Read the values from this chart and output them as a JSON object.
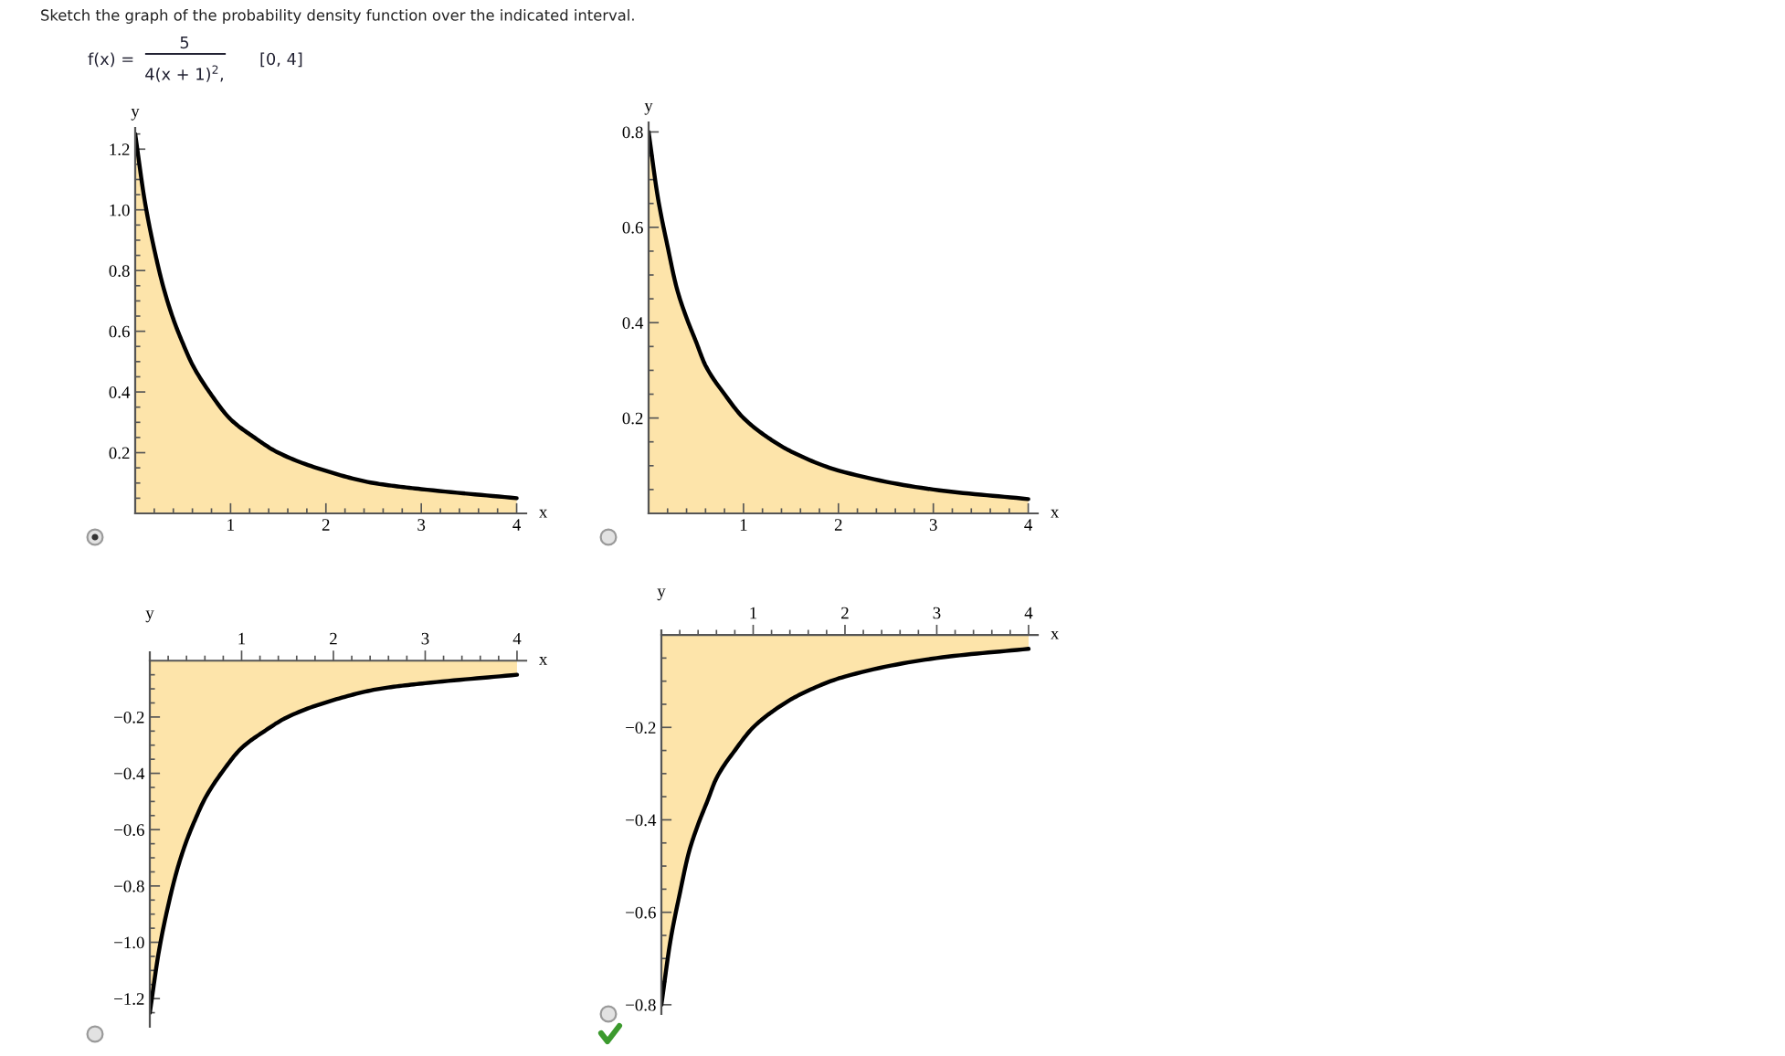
{
  "chart_data": [
    {
      "type": "other",
      "title": "Sketch the graph of the probability density function over the indicated interval.",
      "annotations": [
        "f(x) =",
        "5",
        "4(x + 1)$^{2}$,",
        "[0, 4]"
      ]
    },
    {
      "type": "area",
      "xlabel": "x",
      "ylabel": "y",
      "color": "#fde4aa",
      "x": [
        0,
        0.1,
        0.2,
        0.3,
        0.4,
        0.5,
        0.6,
        0.8,
        1,
        1.25,
        1.5,
        2,
        2.5,
        3,
        4
      ],
      "values": [
        1.25,
        1.03,
        0.87,
        0.74,
        0.64,
        0.56,
        0.49,
        0.39,
        0.31,
        0.25,
        0.2,
        0.14,
        0.1,
        0.08,
        0.05
      ],
      "xlim": [
        0,
        4.1
      ],
      "ylim": [
        0,
        1.27
      ],
      "xticks": [
        {
          "value": 0.2,
          "label": null
        },
        {
          "value": 0.4,
          "label": null
        },
        {
          "value": 0.6,
          "label": null
        },
        {
          "value": 0.8,
          "label": null
        },
        1,
        {
          "value": 1.2,
          "label": null
        },
        {
          "value": 1.4,
          "label": null
        },
        {
          "value": 1.6,
          "label": null
        },
        {
          "value": 1.8,
          "label": null
        },
        2,
        {
          "value": 2.2,
          "label": null
        },
        {
          "value": 2.4,
          "label": null
        },
        {
          "value": 2.6,
          "label": null
        },
        {
          "value": 2.8,
          "label": null
        },
        3,
        {
          "value": 3.2,
          "label": null
        },
        {
          "value": 3.4,
          "label": null
        },
        {
          "value": 3.6,
          "label": null
        },
        {
          "value": 3.8,
          "label": null
        },
        4
      ],
      "yticks": [
        {
          "value": 0.05,
          "label": null
        },
        {
          "value": 0.1,
          "label": null
        },
        {
          "value": 0.15,
          "label": null
        },
        0.2,
        {
          "value": 0.25,
          "label": null
        },
        {
          "value": 0.3,
          "label": null
        },
        {
          "value": 0.35,
          "label": null
        },
        0.4,
        {
          "value": 0.45,
          "label": null
        },
        {
          "value": 0.5,
          "label": null
        },
        {
          "value": 0.55,
          "label": null
        },
        0.6,
        {
          "value": 0.65,
          "label": null
        },
        {
          "value": 0.7,
          "label": null
        },
        {
          "value": 0.75,
          "label": null
        },
        0.8,
        {
          "value": 0.85,
          "label": null
        },
        {
          "value": 0.9,
          "label": null
        },
        {
          "value": 0.95,
          "label": null
        },
        {
          "value": 1,
          "label": "1.0"
        },
        {
          "value": 1.05,
          "label": null
        },
        {
          "value": 1.1,
          "label": null
        },
        {
          "value": 1.15,
          "label": null
        },
        1.2,
        {
          "value": 1.25,
          "label": null
        }
      ]
    },
    {
      "type": "area",
      "xlabel": "x",
      "ylabel": "y",
      "color": "#fde4aa",
      "x": [
        0,
        0.1,
        0.2,
        0.3,
        0.4,
        0.5,
        0.6,
        0.8,
        1,
        1.25,
        1.5,
        2,
        3,
        4
      ],
      "values": [
        0.8,
        0.66,
        0.56,
        0.47,
        0.41,
        0.36,
        0.31,
        0.25,
        0.2,
        0.16,
        0.13,
        0.09,
        0.05,
        0.03
      ],
      "xlim": [
        0,
        4.1
      ],
      "ylim": [
        0,
        0.82
      ],
      "xticks": [
        {
          "value": 0.2,
          "label": null
        },
        {
          "value": 0.4,
          "label": null
        },
        {
          "value": 0.6,
          "label": null
        },
        {
          "value": 0.8,
          "label": null
        },
        1,
        {
          "value": 1.2,
          "label": null
        },
        {
          "value": 1.4,
          "label": null
        },
        {
          "value": 1.6,
          "label": null
        },
        {
          "value": 1.8,
          "label": null
        },
        2,
        {
          "value": 2.2,
          "label": null
        },
        {
          "value": 2.4,
          "label": null
        },
        {
          "value": 2.6,
          "label": null
        },
        {
          "value": 2.8,
          "label": null
        },
        3,
        {
          "value": 3.2,
          "label": null
        },
        {
          "value": 3.4,
          "label": null
        },
        {
          "value": 3.6,
          "label": null
        },
        {
          "value": 3.8,
          "label": null
        },
        4
      ],
      "yticks": [
        {
          "value": 0.05,
          "label": null
        },
        {
          "value": 0.1,
          "label": null
        },
        {
          "value": 0.15,
          "label": null
        },
        0.2,
        {
          "value": 0.25,
          "label": null
        },
        {
          "value": 0.3,
          "label": null
        },
        {
          "value": 0.35,
          "label": null
        },
        0.4,
        {
          "value": 0.45,
          "label": null
        },
        {
          "value": 0.5,
          "label": null
        },
        {
          "value": 0.55,
          "label": null
        },
        0.6,
        {
          "value": 0.65,
          "label": null
        },
        {
          "value": 0.7,
          "label": null
        },
        {
          "value": 0.75,
          "label": null
        },
        0.8
      ]
    },
    {
      "type": "area",
      "xlabel": "x",
      "ylabel": "y",
      "color": "#fde4aa",
      "x": [
        0,
        0.1,
        0.2,
        0.3,
        0.4,
        0.5,
        0.6,
        0.8,
        1,
        1.25,
        1.5,
        2,
        2.5,
        3,
        4
      ],
      "values": [
        -1.25,
        -1.03,
        -0.87,
        -0.74,
        -0.64,
        -0.56,
        -0.49,
        -0.39,
        -0.31,
        -0.25,
        -0.2,
        -0.14,
        -0.1,
        -0.08,
        -0.05
      ],
      "xlim": [
        0,
        4.1
      ],
      "ylim": [
        -1.3,
        0.03
      ],
      "xticks": [
        {
          "value": 0.2,
          "label": null
        },
        {
          "value": 0.4,
          "label": null
        },
        {
          "value": 0.6,
          "label": null
        },
        {
          "value": 0.8,
          "label": null
        },
        1,
        {
          "value": 1.2,
          "label": null
        },
        {
          "value": 1.4,
          "label": null
        },
        {
          "value": 1.6,
          "label": null
        },
        {
          "value": 1.8,
          "label": null
        },
        2,
        {
          "value": 2.2,
          "label": null
        },
        {
          "value": 2.4,
          "label": null
        },
        {
          "value": 2.6,
          "label": null
        },
        {
          "value": 2.8,
          "label": null
        },
        3,
        {
          "value": 3.2,
          "label": null
        },
        {
          "value": 3.4,
          "label": null
        },
        {
          "value": 3.6,
          "label": null
        },
        {
          "value": 3.8,
          "label": null
        },
        4
      ],
      "yticks": [
        {
          "value": -0.05,
          "label": null
        },
        {
          "value": -0.1,
          "label": null
        },
        {
          "value": -0.15,
          "label": null
        },
        {
          "value": -0.2,
          "label": "−0.2"
        },
        {
          "value": -0.25,
          "label": null
        },
        {
          "value": -0.3,
          "label": null
        },
        {
          "value": -0.35,
          "label": null
        },
        {
          "value": -0.4,
          "label": "−0.4"
        },
        {
          "value": -0.45,
          "label": null
        },
        {
          "value": -0.5,
          "label": null
        },
        {
          "value": -0.55,
          "label": null
        },
        {
          "value": -0.6,
          "label": "−0.6"
        },
        {
          "value": -0.65,
          "label": null
        },
        {
          "value": -0.7,
          "label": null
        },
        {
          "value": -0.75,
          "label": null
        },
        {
          "value": -0.8,
          "label": "−0.8"
        },
        {
          "value": -0.85,
          "label": null
        },
        {
          "value": -0.9,
          "label": null
        },
        {
          "value": -0.95,
          "label": null
        },
        {
          "value": -1,
          "label": "−1.0"
        },
        {
          "value": -1.05,
          "label": null
        },
        {
          "value": -1.1,
          "label": null
        },
        {
          "value": -1.15,
          "label": null
        },
        {
          "value": -1.2,
          "label": "−1.2"
        },
        {
          "value": -1.25,
          "label": null
        }
      ]
    },
    {
      "type": "area",
      "xlabel": "x",
      "ylabel": "y",
      "color": "#fde4aa",
      "x": [
        0,
        0.1,
        0.2,
        0.3,
        0.4,
        0.5,
        0.6,
        0.8,
        1,
        1.25,
        1.5,
        2,
        3,
        4
      ],
      "values": [
        -0.8,
        -0.66,
        -0.56,
        -0.47,
        -0.41,
        -0.36,
        -0.31,
        -0.25,
        -0.2,
        -0.16,
        -0.13,
        -0.09,
        -0.05,
        -0.03
      ],
      "xlim": [
        0,
        4.1
      ],
      "ylim": [
        -0.82,
        0.01
      ],
      "xticks": [
        {
          "value": 0.2,
          "label": null
        },
        {
          "value": 0.4,
          "label": null
        },
        {
          "value": 0.6,
          "label": null
        },
        {
          "value": 0.8,
          "label": null
        },
        1,
        {
          "value": 1.2,
          "label": null
        },
        {
          "value": 1.4,
          "label": null
        },
        {
          "value": 1.6,
          "label": null
        },
        {
          "value": 1.8,
          "label": null
        },
        2,
        {
          "value": 2.2,
          "label": null
        },
        {
          "value": 2.4,
          "label": null
        },
        {
          "value": 2.6,
          "label": null
        },
        {
          "value": 2.8,
          "label": null
        },
        3,
        {
          "value": 3.2,
          "label": null
        },
        {
          "value": 3.4,
          "label": null
        },
        {
          "value": 3.6,
          "label": null
        },
        {
          "value": 3.8,
          "label": null
        },
        4
      ],
      "yticks": [
        {
          "value": -0.05,
          "label": null
        },
        {
          "value": -0.1,
          "label": null
        },
        {
          "value": -0.15,
          "label": null
        },
        {
          "value": -0.2,
          "label": "−0.2"
        },
        {
          "value": -0.25,
          "label": null
        },
        {
          "value": -0.3,
          "label": null
        },
        {
          "value": -0.35,
          "label": null
        },
        {
          "value": -0.4,
          "label": "−0.4"
        },
        {
          "value": -0.45,
          "label": null
        },
        {
          "value": -0.5,
          "label": null
        },
        {
          "value": -0.55,
          "label": null
        },
        {
          "value": -0.6,
          "label": "−0.6"
        },
        {
          "value": -0.65,
          "label": null
        },
        {
          "value": -0.7,
          "label": null
        },
        {
          "value": -0.75,
          "label": null
        },
        {
          "value": -0.8,
          "label": "−0.8"
        }
      ]
    }
  ]
}
